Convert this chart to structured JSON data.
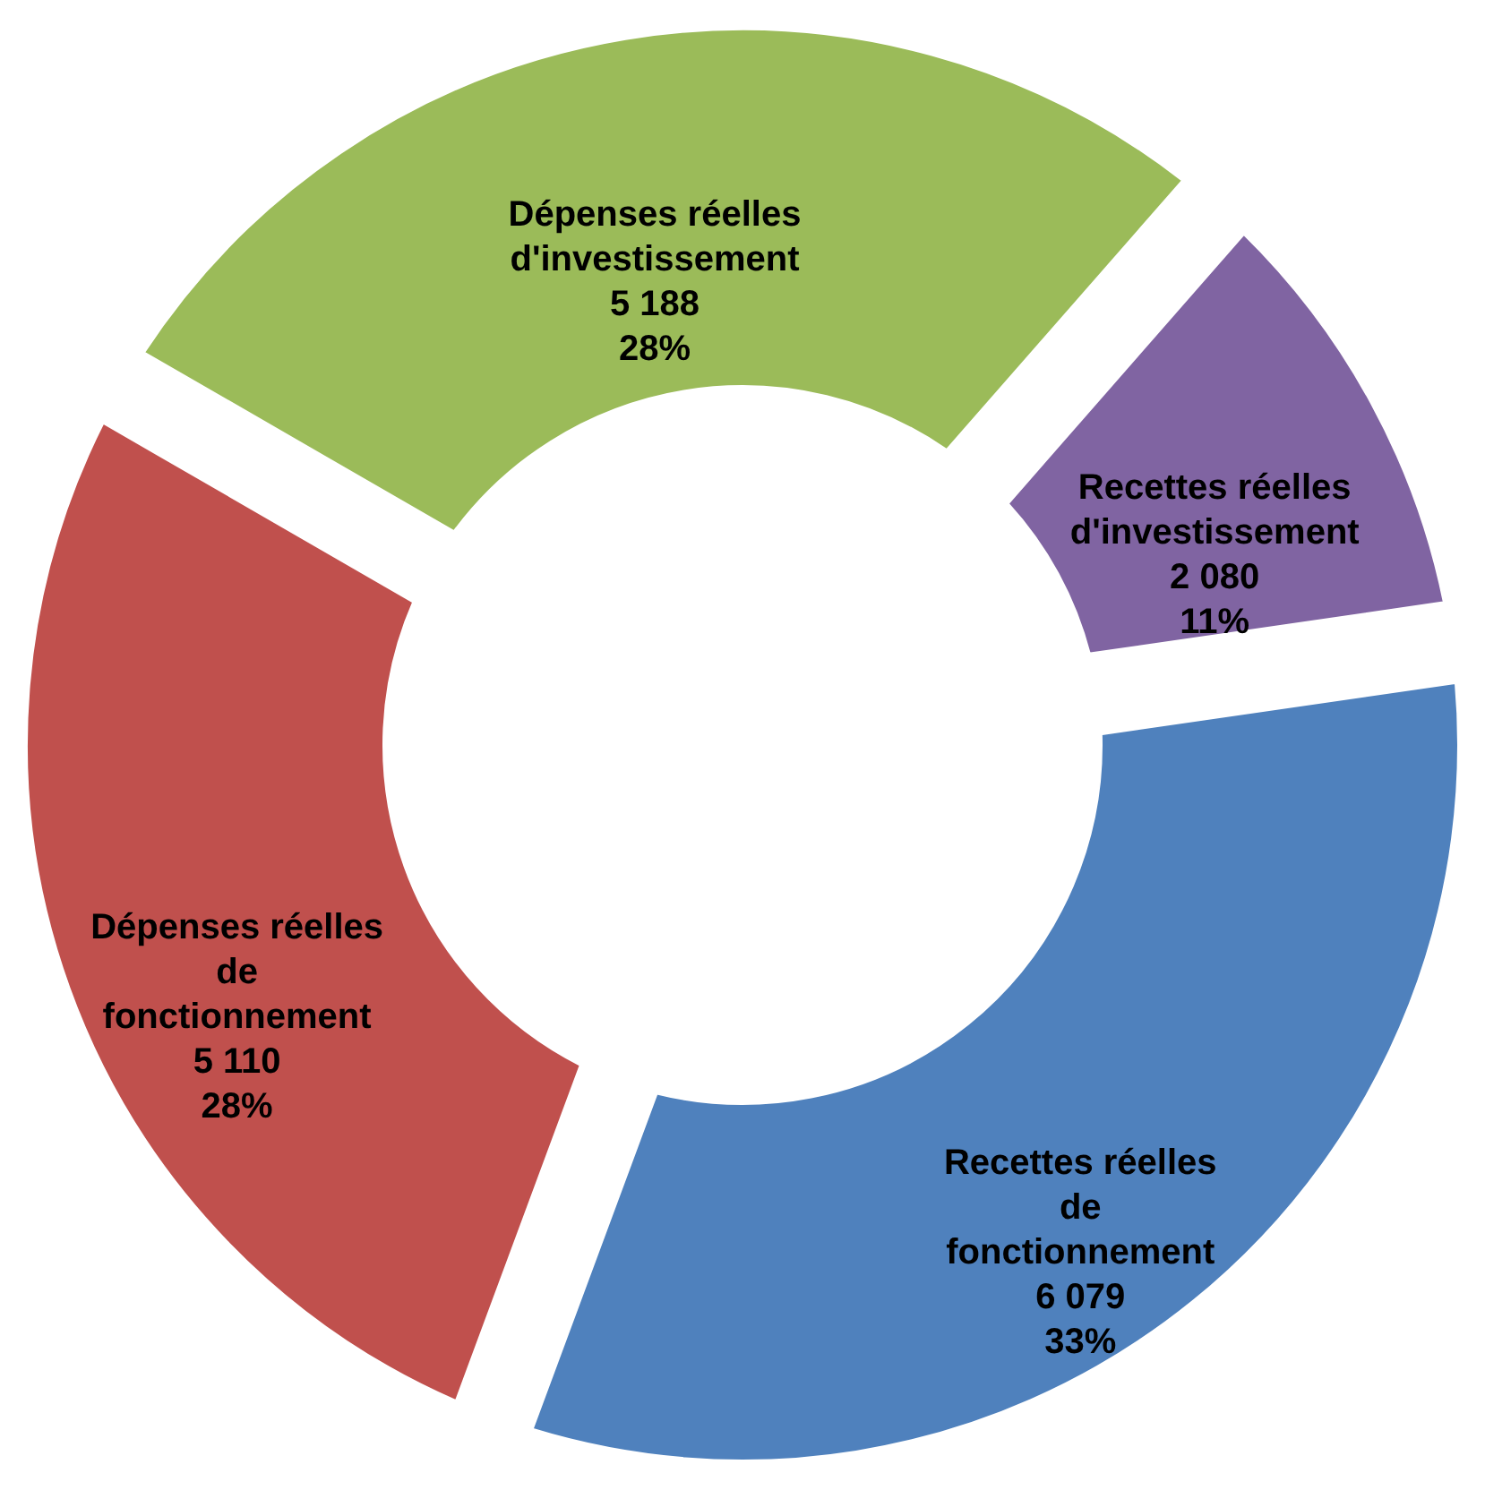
{
  "chart_data": {
    "type": "donut",
    "categories": [
      "Dépenses réelles d'investissement",
      "Recettes réelles d'investissement",
      "Recettes réelles de fonctionnement",
      "Dépenses réelles de fonctionnement"
    ],
    "values": [
      5188,
      2080,
      6079,
      5110
    ],
    "colors": [
      "#9bbb59",
      "#8064a2",
      "#4f81bd",
      "#c0504d"
    ],
    "value_labels": [
      "5 188\n28%",
      "2 080\n11%",
      "6 079\n33%",
      "5 110\n28%"
    ],
    "legend": false
  }
}
